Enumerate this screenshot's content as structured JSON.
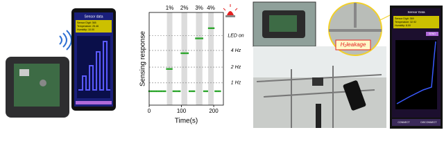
{
  "left_phone": {
    "title": "Sensor data",
    "lines": [
      "Sensor Digit: 365",
      "Temperature: 25.46",
      "Humidity: 10.00"
    ]
  },
  "chart_data": {
    "type": "scatter",
    "ylabel": "Sensing response",
    "xlabel": "Time(s)",
    "x": [
      0,
      5,
      10,
      15,
      20,
      25,
      30,
      35,
      40,
      45,
      50,
      55,
      60,
      65,
      70,
      75,
      80,
      85,
      90,
      95,
      100,
      105,
      110,
      115,
      120,
      125,
      130,
      135,
      140,
      145,
      150,
      155,
      160,
      165,
      170,
      175,
      180,
      185,
      190,
      195,
      200,
      205,
      210,
      215,
      220
    ],
    "series": [
      {
        "color": "#2aa52a",
        "values": [
          15,
          15,
          15,
          15,
          15,
          15,
          15,
          15,
          15,
          15,
          15,
          39,
          39,
          39,
          39,
          15,
          15,
          15,
          15,
          15,
          56,
          56,
          56,
          56,
          56,
          15,
          15,
          15,
          15,
          72,
          72,
          72,
          72,
          72,
          15,
          15,
          15,
          83,
          83,
          83,
          83,
          15,
          15,
          15,
          15
        ]
      }
    ],
    "xlim": [
      0,
      230
    ],
    "ylim": [
      0,
      100
    ],
    "xticks": [
      0,
      100,
      200
    ],
    "bands": [
      [
        55,
        72
      ],
      [
        100,
        118
      ],
      [
        145,
        165
      ],
      [
        183,
        200
      ]
    ],
    "band_labels": [
      "1%",
      "2%",
      "3%",
      "4%"
    ],
    "thresholds": [
      {
        "label": "LED on",
        "value": 75
      },
      {
        "label": "4 Hz",
        "value": 59
      },
      {
        "label": "2 Hz",
        "value": 41
      },
      {
        "label": "1 Hz",
        "value": 24
      }
    ]
  },
  "leak_label": {
    "main": "H",
    "sub": "2",
    "rest": "leakage"
  },
  "right_phone": {
    "title": "Sensor Data",
    "lines": [
      "Sensor Digit: 369",
      "Temperature: 32.92",
      "Humidity: 8.00"
    ],
    "send": "SEND",
    "connect": "CONNECT",
    "disconnect": "DISCONNECT"
  }
}
